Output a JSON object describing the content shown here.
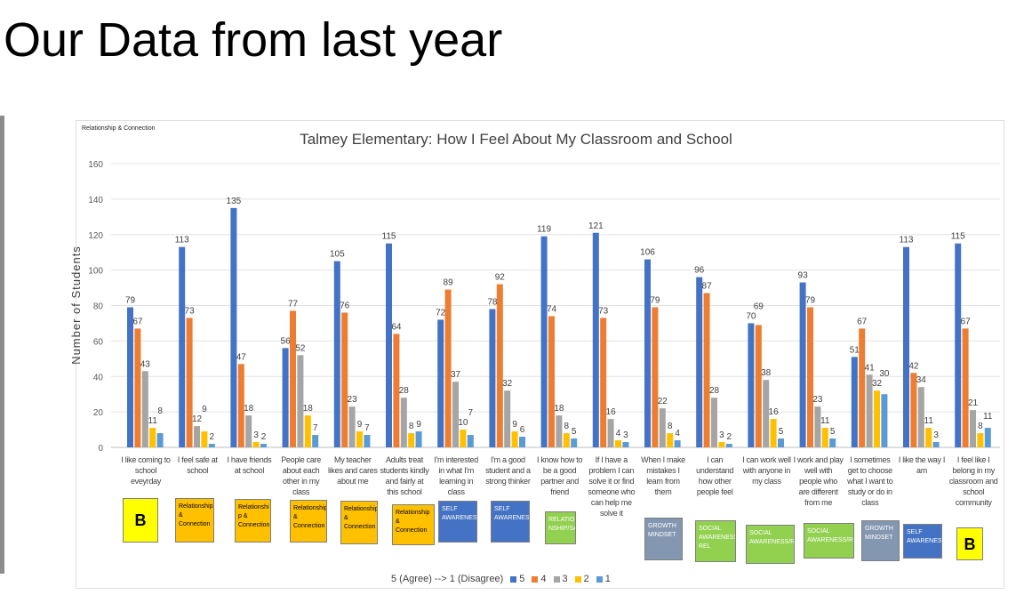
{
  "slide": {
    "title": "Our Data from last year"
  },
  "corner_label": "Relationship & Connection",
  "chart_data": {
    "type": "bar",
    "title": "Talmey Elementary: How I Feel About My Classroom and School",
    "ylabel": "Number of Students",
    "xlabel": "",
    "ylim": [
      0,
      160
    ],
    "yticks": [
      0,
      20,
      40,
      60,
      80,
      100,
      120,
      140,
      160
    ],
    "grid": true,
    "legend_title": "5 (Agree) --> 1 (Disagree)",
    "legend_placement": "bottom",
    "categories": [
      "I like coming to school eveyrday",
      "I feel safe at school",
      "I have friends at school",
      "People care about each other in my class",
      "My teacher likes and cares about me",
      "Adults treat students kindly and fairly at this school",
      "I'm interested in what I'm learning in class",
      "I'm a good student and a strong thinker",
      "I know how to be a good partner and friend",
      "If I have a problem I can solve it or find someone who can help me solve it",
      "When I make mistakes I learn from them",
      "I can understand how other people feel",
      "I can work well with anyone in my class",
      "I work and play well with people who are different from me",
      "I sometimes get to choose what I want to study or do in class",
      "I like the way I am",
      "I feel like I belong in my classroom and school community"
    ],
    "series": [
      {
        "name": "5",
        "color": "#4472c4",
        "values": [
          79,
          113,
          135,
          56,
          105,
          115,
          72,
          78,
          119,
          121,
          106,
          96,
          70,
          93,
          51,
          113,
          115
        ]
      },
      {
        "name": "4",
        "color": "#ed7d31",
        "values": [
          67,
          73,
          47,
          77,
          76,
          64,
          89,
          92,
          74,
          73,
          79,
          87,
          69,
          79,
          67,
          42,
          67
        ]
      },
      {
        "name": "3",
        "color": "#a5a5a5",
        "values": [
          43,
          12,
          18,
          52,
          23,
          28,
          37,
          32,
          18,
          16,
          22,
          28,
          38,
          23,
          41,
          34,
          21
        ]
      },
      {
        "name": "2",
        "color": "#ffc000",
        "values": [
          11,
          9,
          3,
          18,
          9,
          8,
          10,
          9,
          8,
          4,
          8,
          3,
          16,
          11,
          32,
          11,
          8
        ]
      },
      {
        "name": "1",
        "color": "#5b9bd5",
        "values": [
          8,
          2,
          2,
          7,
          7,
          9,
          7,
          6,
          5,
          3,
          4,
          2,
          5,
          5,
          30,
          3,
          11
        ]
      }
    ]
  },
  "tags": [
    {
      "text": "B",
      "color": "#ffff00",
      "type": "b"
    },
    {
      "text": "Relationship & Connection",
      "color": "#ffc000"
    },
    {
      "text": "Relationshi p & Connection",
      "color": "#ffc000"
    },
    {
      "text": "Relationship & Connection",
      "color": "#ffc000"
    },
    {
      "text": "Relationship & Connection",
      "color": "#ffc000"
    },
    {
      "text": "Relationship & Connection",
      "color": "#ffc000"
    },
    {
      "text": "SELF AWARENESS",
      "color": "#4472c4",
      "light": true
    },
    {
      "text": "SELF AWARENESS",
      "color": "#4472c4",
      "light": true
    },
    {
      "text": "RELATIO NSHIP/SA",
      "color": "#92d050",
      "light": true
    },
    null,
    {
      "text": "GROWTH MINDSET",
      "color": "#8497b0",
      "light": true
    },
    {
      "text": "SOCIAL AWARENESS/ REL",
      "color": "#92d050",
      "light": true
    },
    {
      "text": "SOCIAL AWARENESS/REL",
      "color": "#92d050",
      "light": true
    },
    {
      "text": "SOCIAL AWARENESS/REL",
      "color": "#92d050",
      "light": true
    },
    {
      "text": "GROWTH MINDSET",
      "color": "#8497b0",
      "light": true
    },
    {
      "text": "SELF AWARENESS",
      "color": "#4472c4",
      "light": true
    },
    {
      "text": "B",
      "color": "#ffff00",
      "type": "b"
    }
  ]
}
